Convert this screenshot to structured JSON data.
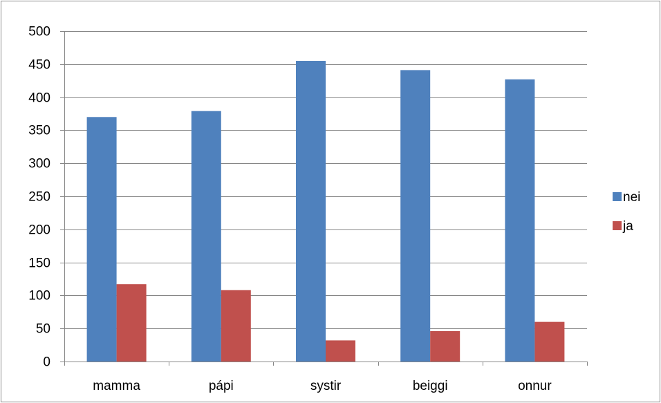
{
  "chart_data": {
    "type": "bar",
    "title": "",
    "xlabel": "",
    "ylabel": "",
    "categories": [
      "mamma",
      "pápi",
      "systir",
      "beiggi",
      "onnur"
    ],
    "series": [
      {
        "name": "nei",
        "color": "#4F81BD",
        "values": [
          370,
          379,
          455,
          441,
          427
        ]
      },
      {
        "name": "ja",
        "color": "#C0504D",
        "values": [
          117,
          108,
          32,
          46,
          60
        ]
      }
    ],
    "ylim": [
      0,
      500
    ],
    "yticks": [
      0,
      50,
      100,
      150,
      200,
      250,
      300,
      350,
      400,
      450,
      500
    ],
    "grid": true,
    "legend": "right"
  }
}
